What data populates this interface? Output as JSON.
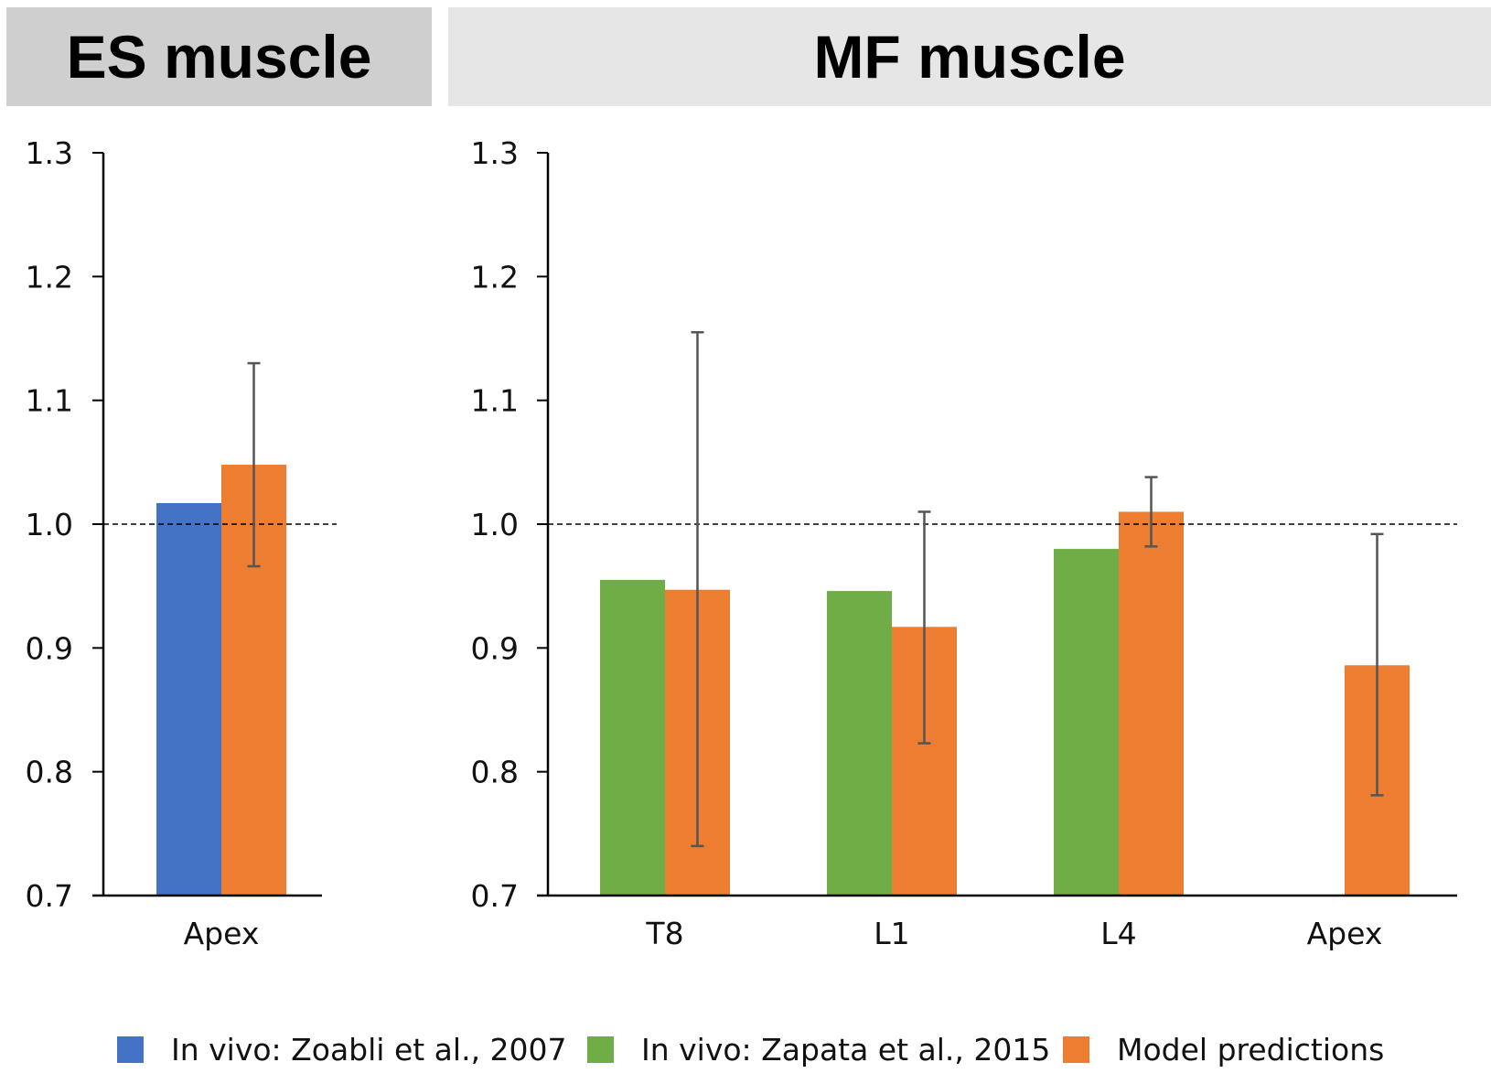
{
  "colors": {
    "zoabli": "#4472c4",
    "zapata": "#70ad47",
    "model": "#ed7d31",
    "axis": "#000000",
    "errorbar": "#555555"
  },
  "legend": [
    {
      "label": "In vivo: Zoabli et al., 2007",
      "color_key": "zoabli"
    },
    {
      "label": "In vivo: Zapata et al., 2015",
      "color_key": "zapata"
    },
    {
      "label": "Model predictions",
      "color_key": "model"
    }
  ],
  "chart_data": [
    {
      "type": "bar",
      "title": "ES muscle",
      "categories": [
        "Apex"
      ],
      "ylim": [
        0.7,
        1.3
      ],
      "yticks": [
        "0.7",
        "0.8",
        "0.9",
        "1.0",
        "1.1",
        "1.2",
        "1.3"
      ],
      "reference_line": 1.0,
      "series": [
        {
          "name": "In vivo: Zoabli et al., 2007",
          "color_key": "zoabli",
          "values": [
            1.017
          ],
          "error_low": [
            null
          ],
          "error_high": [
            null
          ]
        },
        {
          "name": "Model predictions",
          "color_key": "model",
          "values": [
            1.048
          ],
          "error_low": [
            0.966
          ],
          "error_high": [
            1.13
          ]
        }
      ]
    },
    {
      "type": "bar",
      "title": "MF muscle",
      "categories": [
        "T8",
        "L1",
        "L4",
        "Apex"
      ],
      "ylim": [
        0.7,
        1.3
      ],
      "yticks": [
        "0.7",
        "0.8",
        "0.9",
        "1.0",
        "1.1",
        "1.2",
        "1.3"
      ],
      "reference_line": 1.0,
      "series": [
        {
          "name": "In vivo: Zapata et al., 2015",
          "color_key": "zapata",
          "values": [
            0.955,
            0.946,
            0.98,
            null
          ],
          "error_low": [
            null,
            null,
            null,
            null
          ],
          "error_high": [
            null,
            null,
            null,
            null
          ]
        },
        {
          "name": "Model predictions",
          "color_key": "model",
          "values": [
            0.947,
            0.917,
            1.01,
            0.886
          ],
          "error_low": [
            0.74,
            0.823,
            0.982,
            0.781
          ],
          "error_high": [
            1.155,
            1.01,
            1.038,
            0.992
          ]
        }
      ]
    }
  ]
}
